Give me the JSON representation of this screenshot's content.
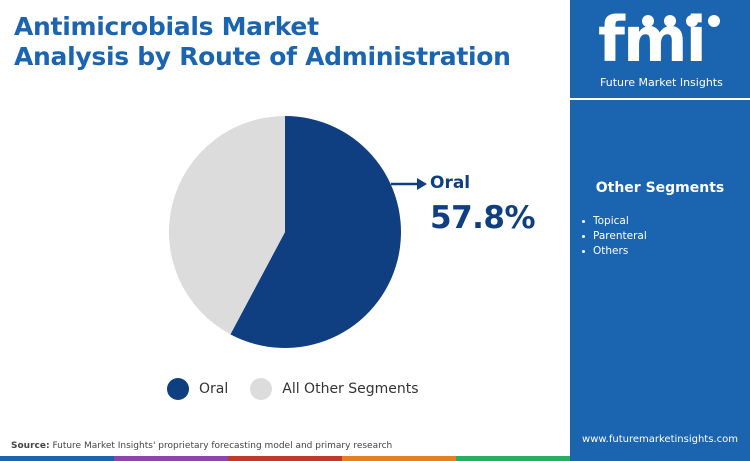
{
  "title": {
    "line1": "Antimicrobials Market",
    "line2": "Analysis by Route of Administration"
  },
  "colors": {
    "brand_blue": "#1b64b0",
    "oral": "#0f3f80",
    "other": "#dcdcdc"
  },
  "chart_data": {
    "type": "pie",
    "title": "Antimicrobials Market Analysis by Route of Administration",
    "slices": [
      {
        "label": "Oral",
        "value": 57.8,
        "color": "#0f3f80"
      },
      {
        "label": "All Other Segments",
        "value": 42.2,
        "color": "#dcdcdc"
      }
    ],
    "start_angle_deg": 0,
    "direction": "clockwise",
    "legend_position": "bottom",
    "annotations": [
      {
        "label": "Oral",
        "value_text": "57.8%"
      }
    ]
  },
  "legend": [
    {
      "label": "Oral",
      "color": "#0f3f80"
    },
    {
      "label": "All Other Segments",
      "color": "#dcdcdc"
    }
  ],
  "callout": {
    "label": "Oral",
    "value": "57.8%",
    "arrow_icon": "arrow-right-icon"
  },
  "source": {
    "prefix": "Source:",
    "text": "Future Market Insights' proprietary forecasting model and primary research"
  },
  "bottom_bar_colors": [
    "#1b64b0",
    "#8e44ad",
    "#c0392b",
    "#e67e22",
    "#27ae60"
  ],
  "sidebar": {
    "logo": {
      "text": "fmi",
      "subtitle": "Future Market Insights",
      "icon": "fmi-logo-icon"
    },
    "other_segments_title": "Other Segments",
    "other_segments": [
      "Topical",
      "Parenteral",
      "Others"
    ],
    "website": "www.futuremarketinsights.com"
  }
}
